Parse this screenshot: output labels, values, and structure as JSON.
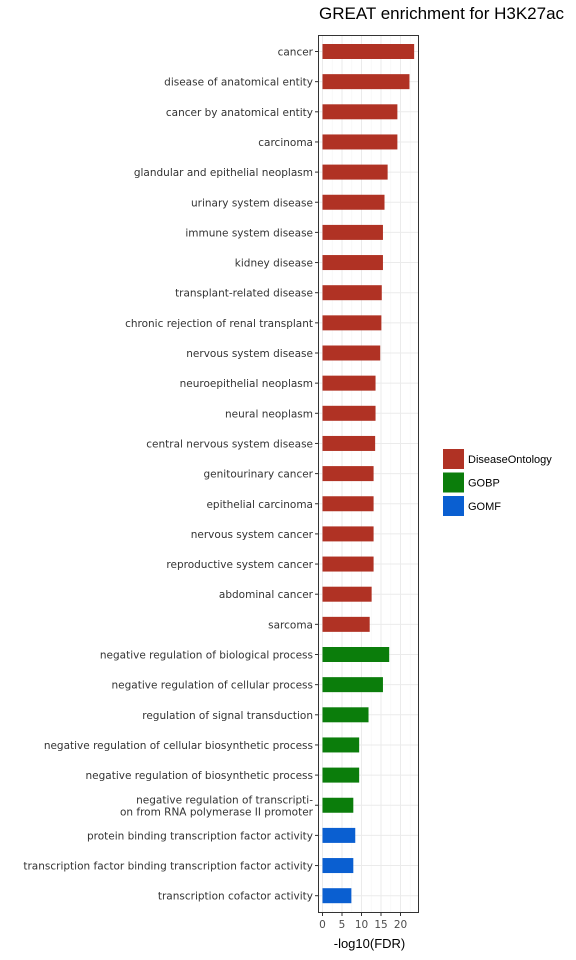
{
  "chart_data": {
    "type": "bar",
    "orientation": "horizontal",
    "title": "GREAT enrichment for H3K27ac",
    "xlabel": "-log10(FDR)",
    "ylabel": "",
    "xlim": [
      0,
      25
    ],
    "xticks": [
      0,
      5,
      10,
      15,
      20
    ],
    "grid": true,
    "legend_position": "right",
    "categories": [
      "cancer",
      "disease of anatomical entity",
      "cancer by anatomical entity",
      "carcinoma",
      "glandular and epithelial neoplasm",
      "urinary system disease",
      "immune system disease",
      "kidney disease",
      "transplant-related disease",
      "chronic rejection of renal transplant",
      "nervous system disease",
      "neuroepithelial neoplasm",
      "neural neoplasm",
      "central nervous system disease",
      "genitourinary cancer",
      "epithelial carcinoma",
      "nervous system cancer",
      "reproductive system cancer",
      "abdominal cancer",
      "sarcoma",
      "negative regulation of biological process",
      "negative regulation of cellular process",
      "regulation of signal transduction",
      "negative regulation of cellular biosynthetic process",
      "negative regulation of biosynthetic process",
      [
        "negative regulation of transcripti-",
        "on from RNA polymerase II promoter"
      ],
      "protein binding transcription factor activity",
      "transcription factor binding transcription factor activity",
      "transcription cofactor activity"
    ],
    "values": [
      23.5,
      22.3,
      19.2,
      19.2,
      16.7,
      15.9,
      15.5,
      15.5,
      15.2,
      15.1,
      14.8,
      13.6,
      13.6,
      13.5,
      13.1,
      13.1,
      13.1,
      13.1,
      12.6,
      12.1,
      17.1,
      15.5,
      11.8,
      9.4,
      9.4,
      7.9,
      8.4,
      7.9,
      7.4
    ],
    "groups": [
      "DiseaseOntology",
      "DiseaseOntology",
      "DiseaseOntology",
      "DiseaseOntology",
      "DiseaseOntology",
      "DiseaseOntology",
      "DiseaseOntology",
      "DiseaseOntology",
      "DiseaseOntology",
      "DiseaseOntology",
      "DiseaseOntology",
      "DiseaseOntology",
      "DiseaseOntology",
      "DiseaseOntology",
      "DiseaseOntology",
      "DiseaseOntology",
      "DiseaseOntology",
      "DiseaseOntology",
      "DiseaseOntology",
      "DiseaseOntology",
      "GOBP",
      "GOBP",
      "GOBP",
      "GOBP",
      "GOBP",
      "GOBP",
      "GOMF",
      "GOMF",
      "GOMF"
    ],
    "legend": [
      {
        "name": "DiseaseOntology",
        "color": "#b03224"
      },
      {
        "name": "GOBP",
        "color": "#0b7d0b"
      },
      {
        "name": "GOMF",
        "color": "#0a5fd1"
      }
    ]
  }
}
